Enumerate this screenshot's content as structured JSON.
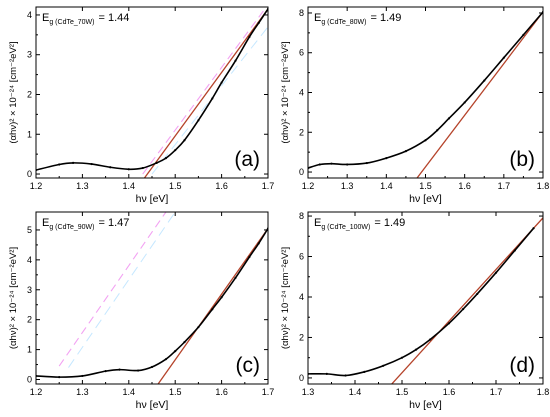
{
  "colors": {
    "data": "#000000",
    "fit": "#b5432a",
    "ghost": "#f08cf0"
  },
  "chart_data": [
    {
      "type": "scatter",
      "panel_label": "(a)",
      "eg_main": "E",
      "eg_sub": "g (CdTe_70W)",
      "eg_value": "= 1.44",
      "xlabel": "hν [eV]",
      "ylabel": "(αhν)² × 10⁻²⁴ [cm⁻²eV²]",
      "xlim": [
        1.2,
        1.7
      ],
      "ylim": [
        -0.1,
        4.2
      ],
      "xticks": [
        1.2,
        1.3,
        1.4,
        1.5,
        1.6,
        1.7
      ],
      "yticks": [
        0,
        1,
        2,
        3,
        4
      ],
      "x": [
        1.2,
        1.25,
        1.28,
        1.32,
        1.36,
        1.4,
        1.43,
        1.46,
        1.48,
        1.5,
        1.52,
        1.55,
        1.58,
        1.6,
        1.63,
        1.66,
        1.68,
        1.7
      ],
      "y": [
        0.1,
        0.24,
        0.28,
        0.25,
        0.17,
        0.12,
        0.15,
        0.28,
        0.4,
        0.6,
        0.85,
        1.35,
        1.9,
        2.3,
        2.85,
        3.45,
        3.8,
        4.15
      ],
      "fit_line": {
        "x": [
          1.44,
          1.7
        ],
        "y": [
          0,
          4.15
        ]
      }
    },
    {
      "type": "scatter",
      "panel_label": "(b)",
      "eg_main": "E",
      "eg_sub": "g (CdTe_80W)",
      "eg_value": "= 1.49",
      "xlabel": "hν [eV]",
      "ylabel": "(αhν)² × 10⁻²⁴ [cm⁻²eV²]",
      "xlim": [
        1.2,
        1.8
      ],
      "ylim": [
        -0.3,
        8.3
      ],
      "xticks": [
        1.2,
        1.3,
        1.4,
        1.5,
        1.6,
        1.7,
        1.8
      ],
      "yticks": [
        0,
        2,
        4,
        6,
        8
      ],
      "x": [
        1.2,
        1.23,
        1.26,
        1.3,
        1.35,
        1.4,
        1.45,
        1.5,
        1.53,
        1.56,
        1.6,
        1.65,
        1.7,
        1.75,
        1.8
      ],
      "y": [
        0.2,
        0.38,
        0.42,
        0.38,
        0.45,
        0.7,
        1.05,
        1.6,
        2.1,
        2.7,
        3.5,
        4.6,
        5.75,
        6.9,
        8.05
      ],
      "fit_line": {
        "x": [
          1.49,
          1.8
        ],
        "y": [
          0,
          8.05
        ]
      }
    },
    {
      "type": "scatter",
      "panel_label": "(c)",
      "eg_main": "E",
      "eg_sub": "g (CdTe_90W)",
      "eg_value": "= 1.47",
      "xlabel": "hν [eV]",
      "ylabel": "(αhν)² × 10⁻²⁴ [cm⁻²eV²]",
      "xlim": [
        1.2,
        1.7
      ],
      "ylim": [
        -0.15,
        5.6
      ],
      "xticks": [
        1.2,
        1.3,
        1.4,
        1.5,
        1.6,
        1.7
      ],
      "yticks": [
        0,
        1,
        2,
        3,
        4,
        5
      ],
      "x": [
        1.2,
        1.25,
        1.3,
        1.35,
        1.38,
        1.42,
        1.45,
        1.48,
        1.5,
        1.52,
        1.55,
        1.58,
        1.6,
        1.63,
        1.66,
        1.68,
        1.7
      ],
      "y": [
        0.12,
        0.08,
        0.12,
        0.28,
        0.33,
        0.3,
        0.42,
        0.68,
        0.95,
        1.25,
        1.75,
        2.35,
        2.75,
        3.4,
        4.1,
        4.55,
        5.05
      ],
      "fit_line": {
        "x": [
          1.47,
          1.7
        ],
        "y": [
          0,
          5.05
        ]
      }
    },
    {
      "type": "scatter",
      "panel_label": "(d)",
      "eg_main": "E",
      "eg_sub": "g (CdTe_100W)",
      "eg_value": "= 1.49",
      "xlabel": "hν [eV]",
      "ylabel": "(αhν)² × 10⁻²⁴ [cm⁻²eV²]",
      "xlim": [
        1.3,
        1.8
      ],
      "ylim": [
        -0.3,
        8.2
      ],
      "xticks": [
        1.3,
        1.4,
        1.5,
        1.6,
        1.7,
        1.8
      ],
      "yticks": [
        0,
        2,
        4,
        6,
        8
      ],
      "x": [
        1.3,
        1.34,
        1.38,
        1.42,
        1.46,
        1.5,
        1.53,
        1.56,
        1.6,
        1.63,
        1.66,
        1.7,
        1.74,
        1.78
      ],
      "y": [
        0.2,
        0.2,
        0.12,
        0.3,
        0.6,
        1.0,
        1.4,
        1.9,
        2.7,
        3.4,
        4.15,
        5.2,
        6.3,
        7.4
      ],
      "fit_line": {
        "x": [
          1.49,
          1.78
        ],
        "y": [
          0,
          7.4
        ]
      }
    }
  ]
}
